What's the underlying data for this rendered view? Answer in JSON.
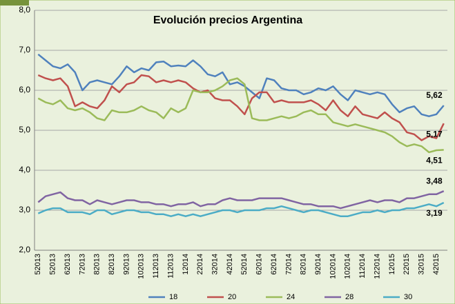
{
  "chart_data": {
    "type": "line",
    "title": "Evolución precios Argentina",
    "categories": [
      "52013",
      null,
      "52013",
      null,
      "62013",
      null,
      "72013",
      null,
      "82013",
      null,
      "82013",
      null,
      "92013",
      null,
      "102013",
      null,
      "112013",
      null,
      "112013",
      null,
      "12014",
      null,
      "22014",
      null,
      "32014",
      null,
      "42014",
      null,
      "52014",
      null,
      "62014",
      null,
      "62014",
      null,
      "72014",
      null,
      "82014",
      null,
      "92014",
      null,
      "102014",
      null,
      "102014",
      null,
      "112014",
      null,
      "122014",
      null,
      "12015",
      null,
      "22015",
      null,
      "32015",
      null,
      "42015",
      null
    ],
    "series": [
      {
        "name": "18",
        "color": "#4f81bd",
        "label_color": "#1f4e8c",
        "values": [
          6.9,
          6.75,
          6.6,
          6.55,
          6.65,
          6.45,
          6.0,
          6.2,
          6.25,
          6.2,
          6.15,
          6.35,
          6.6,
          6.45,
          6.55,
          6.5,
          6.7,
          6.72,
          6.6,
          6.62,
          6.6,
          6.75,
          6.6,
          6.4,
          6.35,
          6.45,
          6.15,
          6.2,
          6.1,
          5.95,
          5.8,
          6.3,
          6.25,
          6.05,
          6.0,
          6.0,
          5.9,
          5.95,
          6.05,
          6.0,
          6.1,
          5.9,
          5.75,
          6.0,
          5.95,
          5.9,
          5.95,
          5.9,
          5.65,
          5.45,
          5.55,
          5.6,
          5.4,
          5.35,
          5.4,
          5.62
        ],
        "value_labels": [
          null,
          null,
          null,
          null,
          null,
          null,
          null,
          null,
          null,
          null,
          null,
          null,
          null,
          null,
          null,
          null,
          null,
          null,
          null,
          null,
          null,
          null,
          null,
          null,
          null,
          null,
          null,
          null,
          null,
          null,
          null,
          null,
          null,
          null,
          null,
          null,
          null,
          null,
          null,
          null,
          null,
          null,
          null,
          null,
          null,
          null,
          null,
          null,
          null,
          null,
          null,
          null,
          null,
          null,
          null,
          "5,62"
        ]
      },
      {
        "name": "20",
        "color": "#c0504d",
        "label_color": "#943634",
        "values": [
          6.38,
          6.3,
          6.25,
          6.3,
          6.1,
          5.6,
          5.7,
          5.6,
          5.55,
          5.75,
          6.1,
          5.95,
          6.15,
          6.2,
          6.38,
          6.35,
          6.2,
          6.25,
          6.2,
          6.25,
          6.2,
          6.05,
          5.95,
          6.0,
          5.8,
          5.75,
          5.75,
          5.6,
          5.4,
          5.8,
          5.95,
          5.95,
          5.7,
          5.75,
          5.7,
          5.7,
          5.7,
          5.75,
          5.65,
          5.5,
          5.75,
          5.5,
          5.35,
          5.6,
          5.4,
          5.35,
          5.3,
          5.45,
          5.3,
          5.2,
          4.95,
          4.9,
          4.75,
          4.85,
          4.8,
          5.17
        ],
        "value_labels": [
          null,
          null,
          null,
          null,
          null,
          null,
          null,
          null,
          null,
          null,
          null,
          null,
          null,
          null,
          null,
          null,
          null,
          null,
          null,
          null,
          null,
          null,
          null,
          null,
          null,
          null,
          null,
          null,
          null,
          null,
          null,
          null,
          null,
          null,
          null,
          null,
          null,
          null,
          null,
          null,
          null,
          null,
          null,
          null,
          null,
          null,
          null,
          null,
          null,
          null,
          null,
          null,
          null,
          null,
          null,
          "5,17"
        ]
      },
      {
        "name": "24",
        "color": "#9bbb59",
        "label_color": "#76923c",
        "values": [
          5.8,
          5.7,
          5.65,
          5.75,
          5.55,
          5.5,
          5.55,
          5.45,
          5.3,
          5.25,
          5.5,
          5.45,
          5.45,
          5.5,
          5.6,
          5.5,
          5.45,
          5.3,
          5.55,
          5.45,
          5.55,
          6.0,
          5.95,
          5.95,
          6.0,
          6.1,
          6.25,
          6.3,
          6.15,
          5.3,
          5.25,
          5.25,
          5.3,
          5.35,
          5.3,
          5.35,
          5.45,
          5.5,
          5.4,
          5.4,
          5.2,
          5.15,
          5.1,
          5.15,
          5.1,
          5.05,
          5.0,
          4.95,
          4.85,
          4.7,
          4.6,
          4.65,
          4.6,
          4.45,
          4.5,
          4.51
        ],
        "value_labels": [
          null,
          null,
          null,
          null,
          null,
          null,
          null,
          null,
          null,
          null,
          null,
          null,
          null,
          null,
          null,
          null,
          null,
          null,
          null,
          null,
          null,
          null,
          null,
          null,
          null,
          null,
          null,
          null,
          null,
          null,
          null,
          null,
          null,
          null,
          null,
          null,
          null,
          null,
          null,
          null,
          null,
          null,
          null,
          null,
          null,
          null,
          null,
          null,
          null,
          null,
          null,
          null,
          null,
          null,
          null,
          "4,51"
        ]
      },
      {
        "name": "28",
        "color": "#8064a2",
        "label_color": "#7030a0",
        "values": [
          3.2,
          3.35,
          3.4,
          3.45,
          3.3,
          3.25,
          3.25,
          3.15,
          3.25,
          3.2,
          3.15,
          3.2,
          3.25,
          3.25,
          3.2,
          3.2,
          3.15,
          3.15,
          3.1,
          3.15,
          3.15,
          3.2,
          3.1,
          3.15,
          3.15,
          3.25,
          3.3,
          3.25,
          3.25,
          3.25,
          3.3,
          3.3,
          3.3,
          3.3,
          3.25,
          3.2,
          3.15,
          3.15,
          3.1,
          3.1,
          3.1,
          3.05,
          3.1,
          3.15,
          3.2,
          3.25,
          3.2,
          3.25,
          3.25,
          3.2,
          3.3,
          3.3,
          3.35,
          3.4,
          3.4,
          3.48
        ],
        "value_labels": [
          null,
          null,
          null,
          null,
          null,
          null,
          null,
          null,
          null,
          null,
          null,
          null,
          null,
          null,
          null,
          null,
          null,
          null,
          null,
          null,
          null,
          null,
          null,
          null,
          null,
          null,
          null,
          null,
          null,
          null,
          null,
          null,
          null,
          null,
          null,
          null,
          null,
          null,
          null,
          null,
          null,
          null,
          null,
          null,
          null,
          null,
          null,
          null,
          null,
          null,
          null,
          null,
          null,
          null,
          null,
          "3,48"
        ]
      },
      {
        "name": "30",
        "color": "#4bacc6",
        "label_color": "#31859c",
        "values": [
          2.92,
          3.0,
          3.05,
          3.05,
          2.95,
          2.95,
          2.95,
          2.9,
          3.0,
          3.0,
          2.9,
          2.95,
          3.0,
          3.0,
          2.95,
          2.95,
          2.9,
          2.9,
          2.85,
          2.9,
          2.85,
          2.9,
          2.85,
          2.9,
          2.95,
          3.0,
          3.0,
          2.95,
          3.0,
          3.0,
          3.0,
          3.05,
          3.05,
          3.1,
          3.05,
          3.0,
          2.95,
          3.0,
          3.0,
          2.95,
          2.9,
          2.85,
          2.85,
          2.9,
          2.95,
          2.95,
          3.0,
          2.95,
          3.0,
          3.0,
          3.05,
          3.05,
          3.1,
          3.15,
          3.1,
          3.19
        ],
        "value_labels": [
          null,
          null,
          null,
          null,
          null,
          null,
          null,
          null,
          null,
          null,
          null,
          null,
          null,
          null,
          null,
          null,
          null,
          null,
          null,
          null,
          null,
          null,
          null,
          null,
          null,
          null,
          null,
          null,
          null,
          null,
          null,
          null,
          null,
          null,
          null,
          null,
          null,
          null,
          null,
          null,
          null,
          null,
          null,
          null,
          null,
          null,
          null,
          null,
          null,
          null,
          null,
          null,
          null,
          null,
          null,
          "3,19"
        ]
      }
    ],
    "ylim": [
      2,
      8
    ],
    "yticks": [
      {
        "value": 2,
        "label": "2,0"
      },
      {
        "value": 3,
        "label": "3,0"
      },
      {
        "value": 4,
        "label": "4,0"
      },
      {
        "value": 5,
        "label": "5,0"
      },
      {
        "value": 6,
        "label": "6,0"
      },
      {
        "value": 7,
        "label": "7,0"
      },
      {
        "value": 8,
        "label": "8,0"
      }
    ],
    "grid": true,
    "legend": "bottom"
  }
}
